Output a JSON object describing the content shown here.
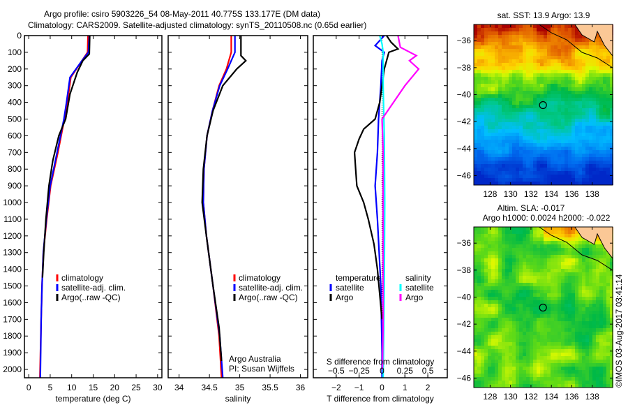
{
  "title1": "Argo profile: csiro 5903226_54 08-May-2011 40.775S 133.177E (DM data)",
  "title2": "Climatology: CARS2009. Satellite-adjusted climatology: synTS_20110508.nc (0.65d earlier)",
  "colors": {
    "clim": "#ff0000",
    "sat": "#0000ff",
    "argo": "#000000",
    "s_sat": "#00ffff",
    "s_argo": "#ff00ff"
  },
  "chart_data": [
    {
      "type": "line",
      "name": "temperature",
      "xlabel": "temperature (deg C)",
      "xlim": [
        -1,
        31
      ],
      "ylim": [
        2050,
        0
      ],
      "xticks": [
        0,
        5,
        10,
        15,
        20,
        25,
        30
      ],
      "yticks": [
        0,
        100,
        200,
        300,
        400,
        500,
        600,
        700,
        800,
        900,
        1000,
        1100,
        1200,
        1300,
        1400,
        1500,
        1600,
        1700,
        1800,
        1900,
        2000
      ],
      "legend": [
        "climatology",
        "satellite-adj. clim.",
        "Argo(..raw -QC)"
      ],
      "series": [
        {
          "name": "climatology",
          "color": "clim",
          "points": [
            [
              0,
              13.8
            ],
            [
              100,
              13.7
            ],
            [
              150,
              12.4
            ],
            [
              250,
              9.8
            ],
            [
              400,
              9
            ],
            [
              500,
              8.3
            ],
            [
              700,
              6.8
            ],
            [
              900,
              5.1
            ],
            [
              1100,
              4.2
            ],
            [
              1300,
              3.4
            ],
            [
              1500,
              3.1
            ],
            [
              1700,
              2.9
            ],
            [
              2050,
              2.6
            ]
          ]
        },
        {
          "name": "satellite-adj. clim.",
          "color": "sat",
          "points": [
            [
              0,
              14.1
            ],
            [
              100,
              13.9
            ],
            [
              150,
              12.4
            ],
            [
              250,
              9.6
            ],
            [
              400,
              8.8
            ],
            [
              500,
              8.2
            ],
            [
              700,
              6.6
            ],
            [
              900,
              5
            ],
            [
              1100,
              4.1
            ],
            [
              1300,
              3.4
            ],
            [
              1500,
              3.1
            ],
            [
              1700,
              2.9
            ],
            [
              2050,
              2.7
            ]
          ]
        },
        {
          "name": "Argo(..raw -QC)",
          "color": "argo",
          "points": [
            [
              0,
              14.2
            ],
            [
              110,
              14.1
            ],
            [
              150,
              12.6
            ],
            [
              220,
              11.3
            ],
            [
              350,
              9.6
            ],
            [
              500,
              8.6
            ],
            [
              600,
              7
            ],
            [
              750,
              5.6
            ],
            [
              900,
              4.7
            ],
            [
              1100,
              4
            ],
            [
              1300,
              3.5
            ],
            [
              1450,
              3.2
            ]
          ]
        }
      ]
    },
    {
      "type": "line",
      "name": "salinity",
      "xlabel": "salinity",
      "xlim": [
        33.82,
        36.12
      ],
      "ylim": [
        2050,
        0
      ],
      "xticks": [
        34,
        34.5,
        35,
        35.5,
        36
      ],
      "legend": [
        "climatology",
        "satellite-adj. clim.",
        "Argo(..raw -QC)"
      ],
      "annotation": [
        "Argo Australia",
        "PI: Susan Wijffels"
      ],
      "series": [
        {
          "name": "climatology",
          "color": "clim",
          "points": [
            [
              0,
              34.86
            ],
            [
              100,
              34.86
            ],
            [
              200,
              34.78
            ],
            [
              300,
              34.66
            ],
            [
              450,
              34.55
            ],
            [
              600,
              34.46
            ],
            [
              800,
              34.41
            ],
            [
              1000,
              34.4
            ],
            [
              1200,
              34.45
            ],
            [
              1500,
              34.56
            ],
            [
              1800,
              34.66
            ],
            [
              2050,
              34.7
            ]
          ]
        },
        {
          "name": "satellite-adj. clim.",
          "color": "sat",
          "points": [
            [
              0,
              34.92
            ],
            [
              100,
              34.92
            ],
            [
              200,
              34.8
            ],
            [
              300,
              34.67
            ],
            [
              450,
              34.55
            ],
            [
              600,
              34.46
            ],
            [
              800,
              34.41
            ],
            [
              1000,
              34.4
            ],
            [
              1200,
              34.45
            ],
            [
              1500,
              34.56
            ],
            [
              1800,
              34.67
            ],
            [
              2050,
              34.72
            ]
          ]
        },
        {
          "name": "Argo(..raw -QC)",
          "color": "argo",
          "points": [
            [
              0,
              35.02
            ],
            [
              120,
              35.02
            ],
            [
              150,
              35.1
            ],
            [
              200,
              34.95
            ],
            [
              300,
              34.72
            ],
            [
              450,
              34.56
            ],
            [
              600,
              34.46
            ],
            [
              800,
              34.4
            ],
            [
              1000,
              34.38
            ],
            [
              1200,
              34.45
            ],
            [
              1500,
              34.56
            ],
            [
              1750,
              34.66
            ],
            [
              1950,
              34.7
            ]
          ]
        }
      ]
    },
    {
      "type": "line",
      "name": "difference",
      "xlabel": "T difference from climatology",
      "x2label": "S difference from climatology",
      "xlim": [
        -3,
        2.85
      ],
      "ylim": [
        2050,
        0
      ],
      "xticks": [
        -2,
        -1,
        0,
        1,
        2
      ],
      "x2ticks": [
        -0.5,
        -0.25,
        0,
        0.25,
        0.5
      ],
      "s_to_t_scale": 4,
      "legend_headers": [
        "temperature",
        "salinity"
      ],
      "legend": [
        "satellite",
        "Argo",
        "satellite",
        "Argo"
      ],
      "series": [
        {
          "name": "T satellite",
          "color": "sat",
          "points": [
            [
              0,
              0.1
            ],
            [
              60,
              -0.3
            ],
            [
              100,
              0.1
            ],
            [
              150,
              0
            ],
            [
              300,
              -0.05
            ],
            [
              500,
              -0.15
            ],
            [
              700,
              -0.2
            ],
            [
              900,
              -0.3
            ],
            [
              1100,
              -0.2
            ],
            [
              1500,
              -0.05
            ],
            [
              1900,
              0
            ],
            [
              2050,
              0
            ]
          ]
        },
        {
          "name": "T Argo",
          "color": "argo",
          "points": [
            [
              0,
              0.2
            ],
            [
              40,
              0.4
            ],
            [
              80,
              0.7
            ],
            [
              100,
              0.3
            ],
            [
              200,
              0.1
            ],
            [
              400,
              -0.1
            ],
            [
              500,
              -0.3
            ],
            [
              560,
              -0.8
            ],
            [
              620,
              -1
            ],
            [
              700,
              -1.2
            ],
            [
              800,
              -1.15
            ],
            [
              900,
              -1.1
            ],
            [
              1000,
              -0.8
            ],
            [
              1100,
              -0.6
            ],
            [
              1250,
              -0.35
            ],
            [
              1400,
              -0.2
            ],
            [
              1550,
              -0.1
            ],
            [
              1700,
              0
            ]
          ]
        },
        {
          "name": "S satellite",
          "color": "s_sat",
          "points": [
            [
              0,
              -0.1
            ],
            [
              50,
              0
            ],
            [
              100,
              0.05
            ],
            [
              300,
              0.05
            ],
            [
              600,
              0.1
            ],
            [
              1000,
              0.12
            ],
            [
              1500,
              0.1
            ],
            [
              2050,
              0.05
            ]
          ]
        },
        {
          "name": "S Argo",
          "color": "s_argo",
          "points": [
            [
              0,
              0.7
            ],
            [
              70,
              0.8
            ],
            [
              120,
              1.5
            ],
            [
              150,
              1.2
            ],
            [
              200,
              1.6
            ],
            [
              250,
              1.3
            ],
            [
              300,
              1
            ],
            [
              400,
              0.5
            ],
            [
              500,
              0
            ],
            [
              700,
              0.05
            ],
            [
              1200,
              0.05
            ],
            [
              1700,
              0.05
            ],
            [
              2000,
              0.02
            ]
          ]
        }
      ]
    },
    {
      "type": "heatmap",
      "name": "sst-map",
      "title": "sat. SST: 13.9 Argo: 13.9",
      "xlim": [
        126.4,
        140
      ],
      "ylim": [
        -46.7,
        -34.8
      ],
      "xticks": [
        128,
        130,
        132,
        134,
        136,
        138
      ],
      "yticks": [
        -36,
        -38,
        -40,
        -42,
        -44,
        -46
      ],
      "marker": [
        133.177,
        -40.775
      ]
    },
    {
      "type": "heatmap",
      "name": "sla-map",
      "title": "Altim. SLA: -0.017",
      "subtitle": "Argo h1000: 0.0024 h2000: -0.022",
      "xlim": [
        126.4,
        140
      ],
      "ylim": [
        -46.7,
        -34.8
      ],
      "xticks": [
        128,
        130,
        132,
        134,
        136,
        138
      ],
      "yticks": [
        -36,
        -38,
        -40,
        -42,
        -44,
        -46
      ],
      "marker": [
        133.177,
        -40.775
      ]
    }
  ],
  "credit": "©IMOS 03-Aug-2017 03:41:14"
}
